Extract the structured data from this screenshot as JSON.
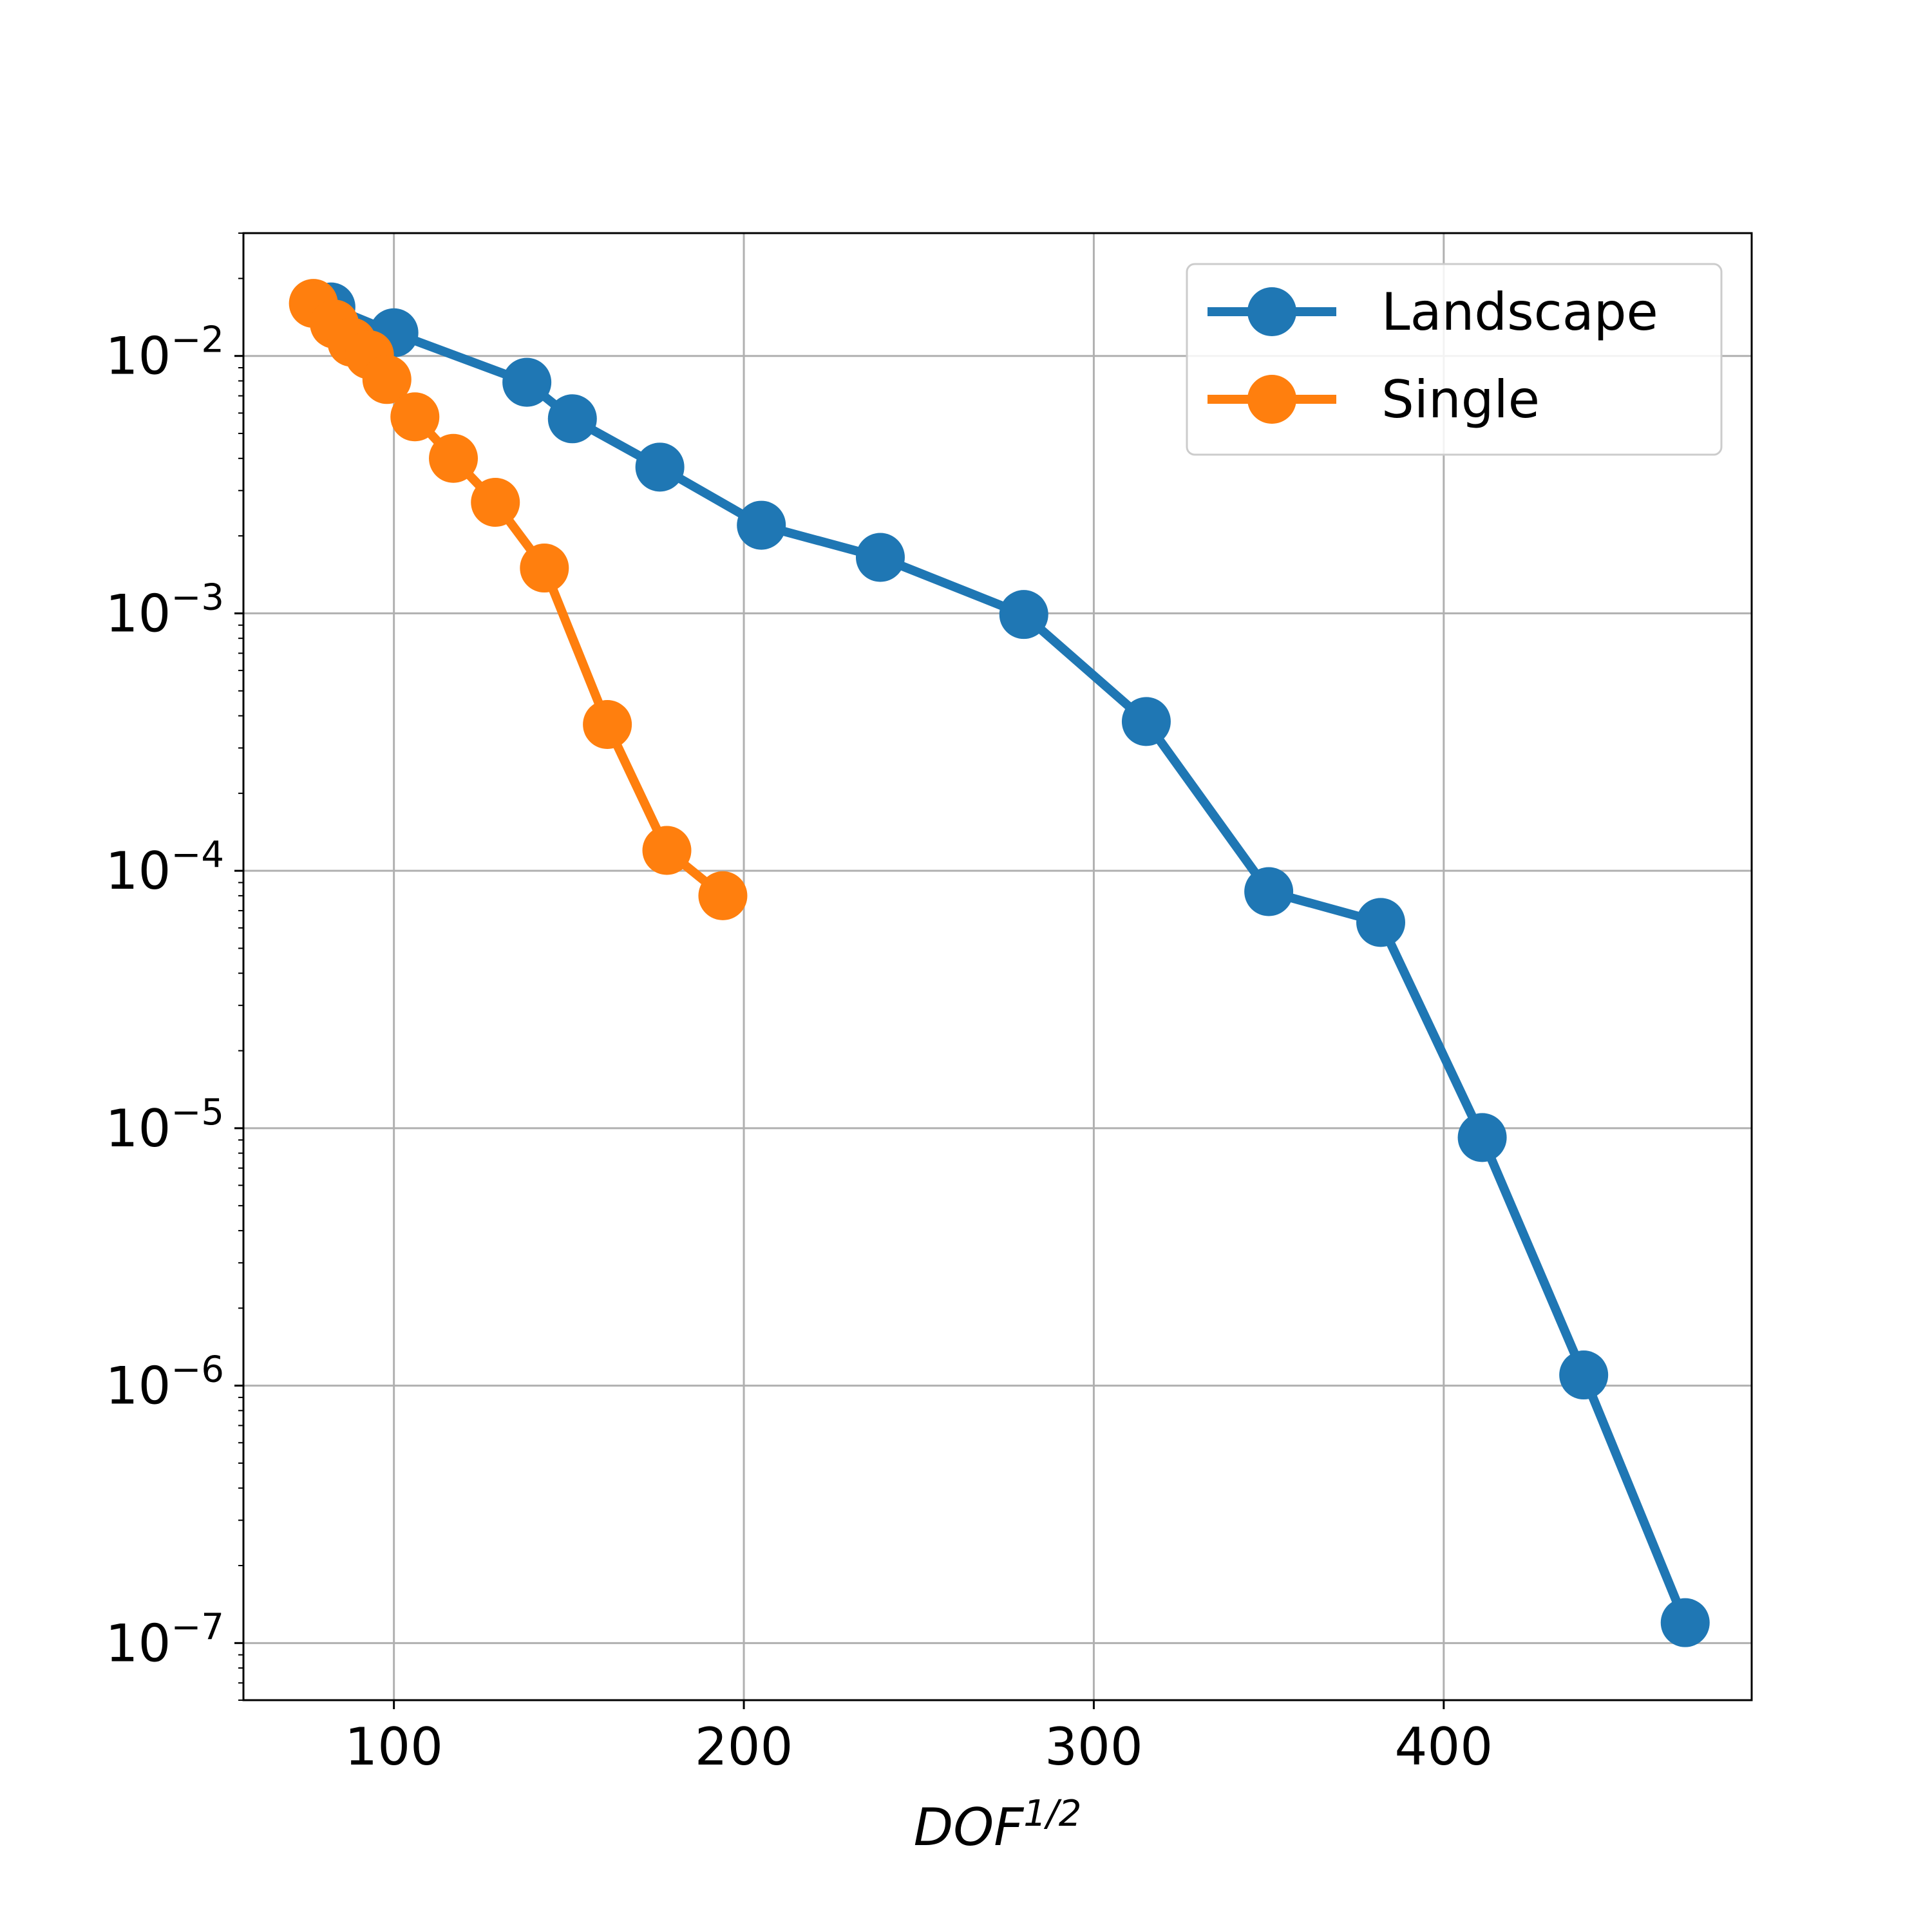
{
  "chart_data": {
    "type": "line",
    "title": "",
    "xlabel": "DOF",
    "xlabel_superscript": "1/2",
    "ylabel": "",
    "xlim": [
      57,
      488
    ],
    "ylim": [
      6e-08,
      0.03
    ],
    "yscale": "log",
    "grid": true,
    "legend_position": "top-right",
    "xticks": [
      {
        "value": 100,
        "label": "100"
      },
      {
        "value": 200,
        "label": "200"
      },
      {
        "value": 300,
        "label": "300"
      },
      {
        "value": 400,
        "label": "400"
      }
    ],
    "yticks": [
      {
        "value": 0.01,
        "base": "10",
        "exp": "−2"
      },
      {
        "value": 0.001,
        "base": "10",
        "exp": "−3"
      },
      {
        "value": 0.0001,
        "base": "10",
        "exp": "−4"
      },
      {
        "value": 1e-05,
        "base": "10",
        "exp": "−5"
      },
      {
        "value": 1e-06,
        "base": "10",
        "exp": "−6"
      },
      {
        "value": 1e-07,
        "base": "10",
        "exp": "−7"
      }
    ],
    "series": [
      {
        "name": "Landscape",
        "color": "#1f77b4",
        "x": [
          82,
          100,
          138,
          151,
          176,
          205,
          239,
          280,
          315,
          350,
          382,
          411,
          440,
          469
        ],
        "y": [
          0.0155,
          0.0123,
          0.0079,
          0.0057,
          0.0037,
          0.0022,
          0.00165,
          0.00099,
          0.00038,
          8.3e-05,
          6.3e-05,
          9.2e-06,
          1.1e-06,
          1.2e-07
        ]
      },
      {
        "name": "Single",
        "color": "#ff7f0e",
        "x": [
          77,
          83,
          88,
          93,
          98,
          106,
          117,
          129,
          143,
          161,
          178,
          194
        ],
        "y": [
          0.016,
          0.0133,
          0.0113,
          0.0101,
          0.0081,
          0.0058,
          0.004,
          0.0027,
          0.0015,
          0.00037,
          0.00012,
          8e-05
        ]
      }
    ]
  }
}
